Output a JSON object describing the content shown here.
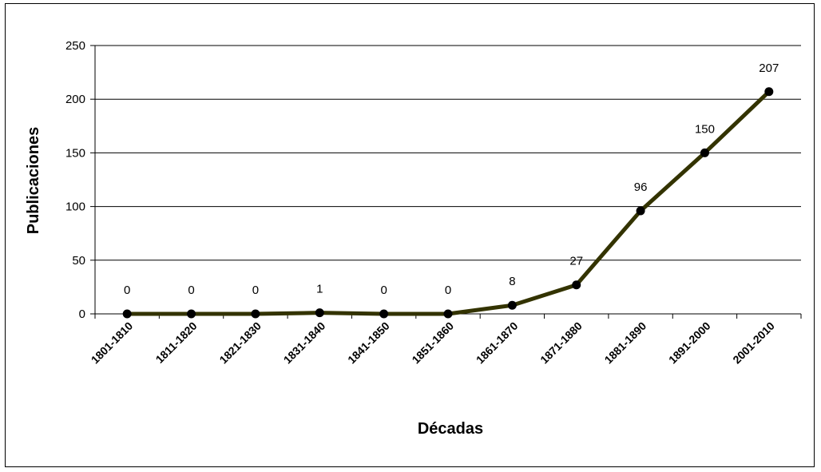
{
  "chart_data": {
    "type": "line",
    "xlabel": "Décadas",
    "ylabel": "Publicaciones",
    "ylim": [
      0,
      250
    ],
    "yticks": [
      0,
      50,
      100,
      150,
      200,
      250
    ],
    "grid": true,
    "categories": [
      "1801-1810",
      "1811-1820",
      "1821-1830",
      "1831-1840",
      "1841-1850",
      "1851-1860",
      "1861-1870",
      "1871-1880",
      "1881-1890",
      "1891-2000",
      "2001-2010"
    ],
    "series": [
      {
        "values": [
          0,
          0,
          0,
          1,
          0,
          0,
          8,
          27,
          96,
          150,
          207
        ]
      }
    ],
    "data_labels": [
      "0",
      "0",
      "0",
      "1",
      "0",
      "0",
      "8",
      "27",
      "96",
      "150",
      "207"
    ],
    "line_color": "#333300",
    "marker_color": "#000000"
  }
}
